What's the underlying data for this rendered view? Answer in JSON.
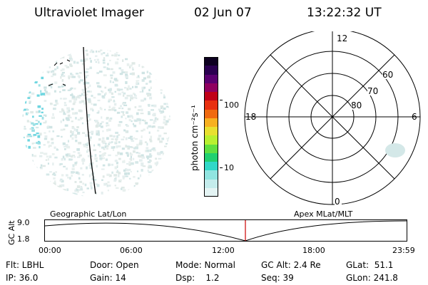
{
  "header": {
    "instrument": "Ultraviolet Imager",
    "date": "02 Jun 07",
    "time": "13:22:32 UT"
  },
  "colorbar": {
    "unit_label": "photon cm⁻²s⁻¹",
    "ticks": [
      "100",
      "10"
    ],
    "colors": [
      "#0d0020",
      "#2a0050",
      "#5a0070",
      "#900060",
      "#c00018",
      "#e83010",
      "#f06a10",
      "#f7b020",
      "#e8e030",
      "#b8f030",
      "#60e040",
      "#20d070",
      "#30d8c8",
      "#90e4e0",
      "#c4ecec",
      "#e4f4f4"
    ]
  },
  "polar_plot": {
    "mlt_labels": {
      "top": "12",
      "bottom": "0",
      "left": "18",
      "right": "6"
    },
    "lat_labels": [
      "60",
      "70",
      "80"
    ]
  },
  "timeline": {
    "left_title": "Geographic Lat/Lon",
    "right_title": "Apex MLat/MLT",
    "axis_label": "GC Alt",
    "y_ticks": [
      "9.0",
      "1.8"
    ],
    "x_ticks": [
      "00:00",
      "06:00",
      "12:00",
      "18:00",
      "23:59"
    ],
    "cursor_time": "13:22:32",
    "cursor_color": "#cc0000"
  },
  "info": {
    "flt": "Flt: LBHL",
    "ip": "IP: 36.0",
    "door": "Door: Open",
    "gain": "Gain: 14",
    "mode": "Mode: Normal",
    "dsp": "Dsp:    1.2",
    "gcalt": "GC Alt: 2.4 Re",
    "seq": "Seq: 39",
    "glat": "GLat:  51.1",
    "glon": "GLon: 241.8"
  }
}
